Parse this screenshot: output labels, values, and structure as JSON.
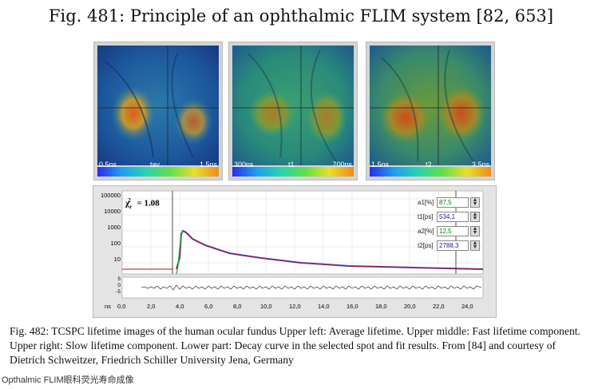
{
  "fig481_title": "Fig. 481: Principle of an ophthalmic FLIM system [82, 653]",
  "panels": [
    {
      "name": "tav",
      "min": "0.5ns",
      "max": "1.5ns"
    },
    {
      "name": "t1",
      "min": "300ps",
      "max": "700ps"
    },
    {
      "name": "t2",
      "min": "1.5ns",
      "max": "3.5ns"
    }
  ],
  "chart": {
    "chi_label": "χ",
    "chi_value": "= 1.08",
    "y_ticks": [
      "100000",
      "10000",
      "1000",
      "100",
      "10"
    ],
    "x_unit": "ns",
    "x_ticks": [
      "0,0",
      "2,0",
      "4,0",
      "6,0",
      "8,0",
      "10,0",
      "12,0",
      "14,0",
      "16,0",
      "18,0",
      "20,0",
      "22,0",
      "24,0"
    ],
    "residual_ticks": [
      "5",
      "0",
      "-5"
    ],
    "params": [
      {
        "label": "a1[%]",
        "value": "87,5",
        "color": "#0a7a0a"
      },
      {
        "label": "t1[ps]",
        "value": "534,1",
        "color": "#1a1aa0"
      },
      {
        "label": "a2[%]",
        "value": "12,5",
        "color": "#0a7a0a"
      },
      {
        "label": "t2[ps]",
        "value": "2788,3",
        "color": "#1a1aa0"
      }
    ]
  },
  "caption": "Fig. 482: TCSPC lifetime images of the human ocular fundus Upper left: Average lifetime. Upper middle: Fast lifetime component. Upper right: Slow lifetime component. Lower part: Decay curve in the selected spot and fit results. From [84] and courtesy of Dietrich Schweitzer, Friedrich Schiller University Jena, Germany",
  "footer": "Opthalmic FLIM眼科荧光寿命成像"
}
